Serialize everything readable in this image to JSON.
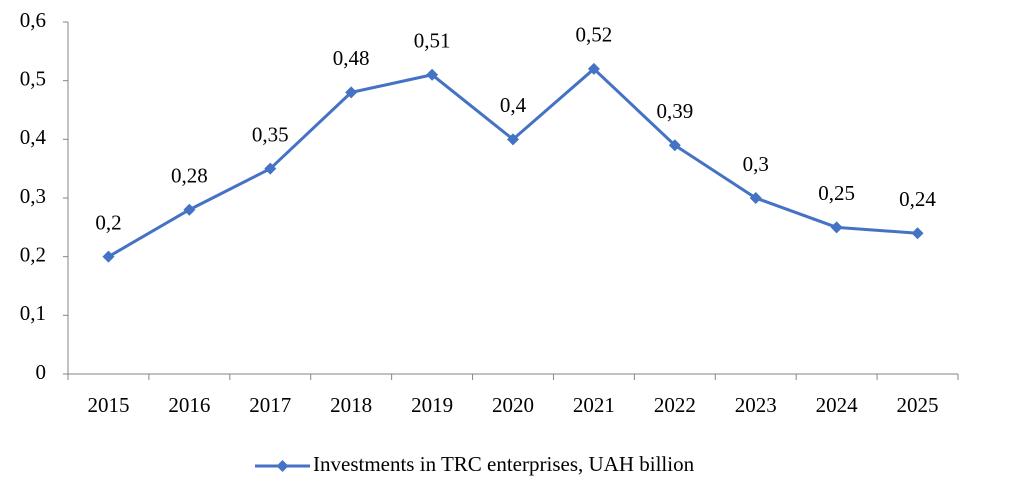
{
  "chart_data": {
    "type": "line",
    "categories": [
      "2015",
      "2016",
      "2017",
      "2018",
      "2019",
      "2020",
      "2021",
      "2022",
      "2023",
      "2024",
      "2025"
    ],
    "series": [
      {
        "name": "Investments in TRC enterprises, UAH billion",
        "color": "#4472c4",
        "values": [
          0.2,
          0.28,
          0.35,
          0.48,
          0.51,
          0.4,
          0.52,
          0.39,
          0.3,
          0.25,
          0.24
        ],
        "value_labels": [
          "0,2",
          "0,28",
          "0,35",
          "0,48",
          "0,51",
          "0,4",
          "0,52",
          "0,39",
          "0,3",
          "0,25",
          "0,24"
        ]
      }
    ],
    "ylim": [
      0,
      0.6
    ],
    "yticks": [
      0,
      {
        "value": 0.1,
        "label": "0,1"
      },
      {
        "value": 0.2,
        "label": "0,2"
      },
      {
        "value": 0.3,
        "label": "0,3"
      },
      {
        "value": 0.4,
        "label": "0,4"
      },
      {
        "value": 0.5,
        "label": "0,5"
      },
      {
        "value": 0.6,
        "label": "0,6"
      }
    ],
    "grid": false,
    "legend": "bottom"
  }
}
